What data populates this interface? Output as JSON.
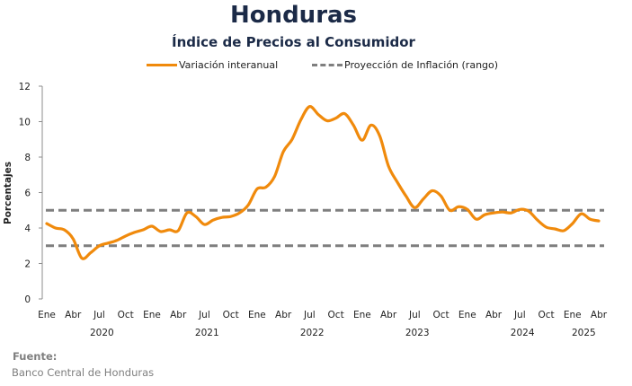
{
  "chart_data": {
    "type": "line",
    "title": "Honduras",
    "subtitle": "Índice de Precios al Consumidor",
    "xlabel": "",
    "ylabel": "Porcentajes",
    "ylim": [
      0,
      12
    ],
    "yticks": [
      0,
      2,
      4,
      6,
      8,
      10,
      12
    ],
    "grid": false,
    "legend_position": "top-center",
    "x_month_labels": [
      "Ene",
      "Abr",
      "Jul",
      "Oct",
      "Ene",
      "Abr",
      "Jul",
      "Oct",
      "Ene",
      "Abr",
      "Jul",
      "Oct",
      "Ene",
      "Abr",
      "Jul",
      "Oct",
      "Ene",
      "Abr",
      "Jul",
      "Oct",
      "Ene",
      "Abr"
    ],
    "x_year_labels": [
      {
        "label": "2020",
        "center_month_index": 6.5
      },
      {
        "label": "2021",
        "center_month_index": 18.5
      },
      {
        "label": "2022",
        "center_month_index": 30.5
      },
      {
        "label": "2023",
        "center_month_index": 42.5
      },
      {
        "label": "2024",
        "center_month_index": 54.5
      },
      {
        "label": "2025",
        "center_month_index": 61.5
      }
    ],
    "x_start": "2020-01",
    "x_end": "2025-04",
    "series": [
      {
        "name": "Variación interanual",
        "color": "#f08a0c",
        "style": "solid",
        "values": [
          4.25,
          4.0,
          3.9,
          3.4,
          2.3,
          2.6,
          3.0,
          3.15,
          3.3,
          3.55,
          3.75,
          3.9,
          4.1,
          3.8,
          3.9,
          3.85,
          4.85,
          4.65,
          4.2,
          4.45,
          4.6,
          4.65,
          4.85,
          5.3,
          6.2,
          6.3,
          6.9,
          8.3,
          9.0,
          10.1,
          10.85,
          10.4,
          10.05,
          10.2,
          10.45,
          9.8,
          8.95,
          9.8,
          9.2,
          7.5,
          6.6,
          5.8,
          5.15,
          5.65,
          6.1,
          5.8,
          5.0,
          5.2,
          5.05,
          4.5,
          4.75,
          4.85,
          4.9,
          4.85,
          5.05,
          4.95,
          4.45,
          4.05,
          3.95,
          3.85,
          4.25,
          4.8,
          4.5,
          4.4
        ]
      },
      {
        "name": "Proyección de Inflación (rango)",
        "color": "#7f7f7f",
        "style": "dashed",
        "lower": 3.0,
        "upper": 5.0
      }
    ]
  },
  "legend": {
    "items": [
      {
        "label": "Variación interanual"
      },
      {
        "label": "Proyección de Inflación (rango)"
      }
    ]
  },
  "footer": {
    "source_label": "Fuente:",
    "source_text": "Banco Central de Honduras"
  }
}
